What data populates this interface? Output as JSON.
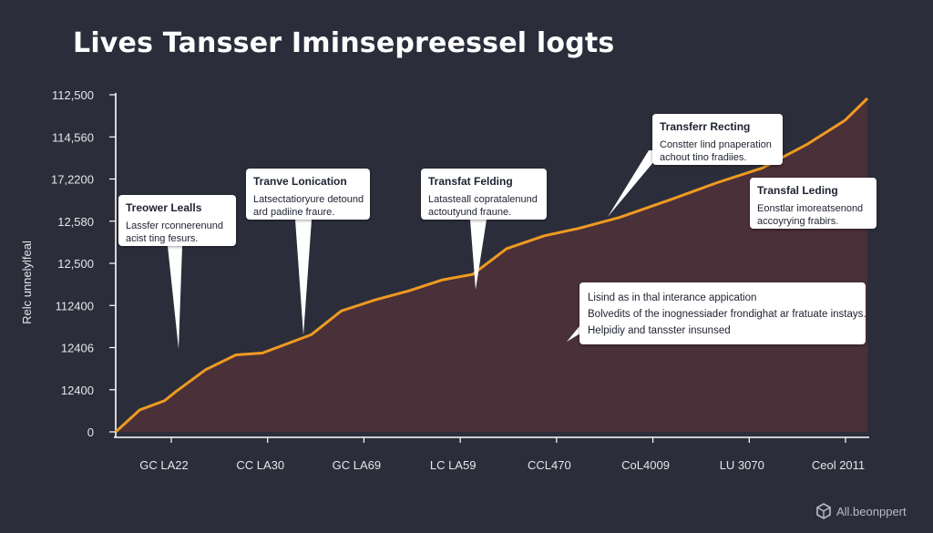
{
  "chart_data": {
    "type": "area",
    "title": "Lives Tansser Iminsepreessel logts",
    "ylabel": "Relc unnelylfeal",
    "xlabel": "",
    "y_ticks": [
      "112,500",
      "114,560",
      "17,2200",
      "12,580",
      "12,500",
      "112400",
      "12406",
      "12400",
      "0"
    ],
    "x_ticks": [
      "GC LA22",
      "CC LA30",
      "GC LA69",
      "LC LA59",
      "CCL470",
      "CoL4009",
      "LU 3070",
      "Ceol 2011"
    ],
    "series": [
      {
        "values": [
          0.0,
          0.6,
          0.85,
          1.1,
          1.7,
          2.1,
          2.15,
          2.65,
          3.3,
          3.6,
          3.85,
          4.15,
          4.3,
          5.0,
          5.35,
          5.55,
          5.85,
          6.35,
          6.8,
          7.2,
          7.85,
          8.5,
          9.1
        ]
      }
    ],
    "x": [
      0.0,
      0.32,
      0.65,
      0.8,
      1.2,
      1.6,
      1.95,
      2.6,
      3.0,
      3.45,
      3.9,
      4.35,
      4.75,
      5.2,
      5.7,
      6.15,
      6.7,
      7.4,
      8.0,
      8.6,
      9.2,
      9.7,
      10.0
    ],
    "ylim": [
      0,
      9.2
    ],
    "xlim": [
      0,
      10
    ],
    "grid": false,
    "colors": {
      "line": "#ef9a21",
      "fill": "#4a3038",
      "axis": "#ffffff",
      "tick_label": "#e4e5ea",
      "background": "#2b2e3a"
    },
    "annotations": [
      {
        "title": "Treower Lealls",
        "lines": [
          "Lassfer rconnerenund",
          "acist ting fesurs."
        ]
      },
      {
        "title": "Tranve Lonication",
        "lines": [
          "Latsectatioryure detound",
          "ard padiine fraure."
        ]
      },
      {
        "title": "Transfat Felding",
        "lines": [
          "Latasteall copratalenund",
          "actoutyund fraune."
        ]
      },
      {
        "title": "Transferr Recting",
        "lines": [
          "Constter lind pnaperation",
          "achout tino fradiies."
        ]
      },
      {
        "title": "Transfal Leding",
        "lines": [
          "Eonstlar imoreatsenond",
          "accoyrying frabirs."
        ]
      },
      {
        "title": "",
        "lines": [
          "Lisind as in thal interance appication",
          "Bolvedits of the inognessiader frondighat ar fratuate instays.",
          "Helpidiy and tansster insunsed"
        ]
      }
    ]
  },
  "watermark": {
    "text": "All.beonppert",
    "icon": "box-logo-icon"
  }
}
